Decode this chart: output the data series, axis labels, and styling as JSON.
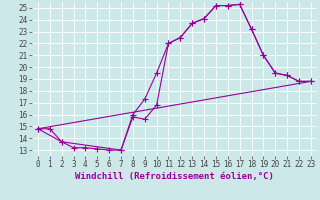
{
  "background_color": "#cce8e8",
  "grid_color": "#ffffff",
  "line_color": "#990099",
  "marker": "+",
  "markersize": 4,
  "linewidth": 0.8,
  "xlabel": "Windchill (Refroidissement éolien,°C)",
  "xlabel_fontsize": 6.5,
  "tick_fontsize": 5.5,
  "xlim": [
    -0.5,
    23.5
  ],
  "ylim": [
    12.5,
    25.5
  ],
  "yticks": [
    13,
    14,
    15,
    16,
    17,
    18,
    19,
    20,
    21,
    22,
    23,
    24,
    25
  ],
  "xticks": [
    0,
    1,
    2,
    3,
    4,
    5,
    6,
    7,
    8,
    9,
    10,
    11,
    12,
    13,
    14,
    15,
    16,
    17,
    18,
    19,
    20,
    21,
    22,
    23
  ],
  "series1": [
    [
      0,
      14.8
    ],
    [
      1,
      14.8
    ],
    [
      2,
      13.7
    ],
    [
      3,
      13.2
    ],
    [
      4,
      13.2
    ],
    [
      5,
      13.1
    ],
    [
      6,
      13.0
    ],
    [
      7,
      13.0
    ],
    [
      8,
      15.8
    ],
    [
      9,
      15.6
    ],
    [
      10,
      16.8
    ],
    [
      11,
      22.0
    ],
    [
      12,
      22.5
    ],
    [
      13,
      23.7
    ],
    [
      14,
      24.1
    ],
    [
      15,
      25.2
    ],
    [
      16,
      25.2
    ],
    [
      17,
      25.3
    ],
    [
      18,
      23.2
    ],
    [
      19,
      21.0
    ],
    [
      20,
      19.5
    ],
    [
      21,
      19.3
    ],
    [
      22,
      18.8
    ],
    [
      23,
      18.8
    ]
  ],
  "series2": [
    [
      0,
      14.8
    ],
    [
      23,
      18.8
    ]
  ],
  "series3": [
    [
      0,
      14.8
    ],
    [
      2,
      13.7
    ],
    [
      7,
      13.0
    ],
    [
      8,
      16.0
    ],
    [
      9,
      17.3
    ],
    [
      10,
      19.5
    ],
    [
      11,
      22.0
    ],
    [
      12,
      22.5
    ],
    [
      13,
      23.7
    ],
    [
      14,
      24.1
    ],
    [
      15,
      25.2
    ],
    [
      16,
      25.2
    ],
    [
      17,
      25.3
    ],
    [
      18,
      23.2
    ],
    [
      19,
      21.0
    ],
    [
      20,
      19.5
    ],
    [
      21,
      19.3
    ],
    [
      22,
      18.8
    ],
    [
      23,
      18.8
    ]
  ]
}
